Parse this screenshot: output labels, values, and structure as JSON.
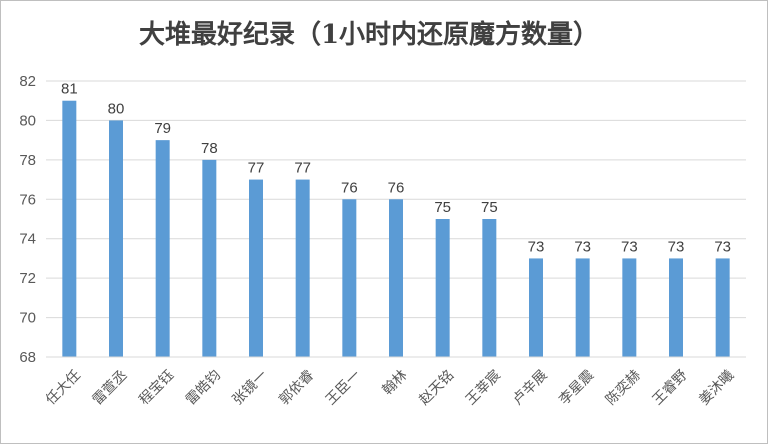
{
  "chart_data": {
    "type": "bar",
    "title": "大堆最好纪录（1小时内还原魔方数量）",
    "xlabel": "",
    "ylabel": "",
    "categories": [
      "任大任",
      "雷萱丞",
      "程宝钰",
      "雷皓钧",
      "张镜一",
      "郭依睿",
      "王臣一",
      "翰林",
      "赵天铭",
      "王莘宸",
      "卢辛展",
      "李星震",
      "陈奕赫",
      "王睿野",
      "姜沐曦"
    ],
    "values": [
      81,
      80,
      79,
      78,
      77,
      77,
      76,
      76,
      75,
      75,
      73,
      73,
      73,
      73,
      73
    ],
    "ylim": [
      68,
      82
    ],
    "yticks": [
      68,
      70,
      72,
      74,
      76,
      78,
      80,
      82
    ],
    "grid": true,
    "data_labels": true,
    "bar_color": "#5b9bd5",
    "gridline_color": "#d9d9d9"
  }
}
